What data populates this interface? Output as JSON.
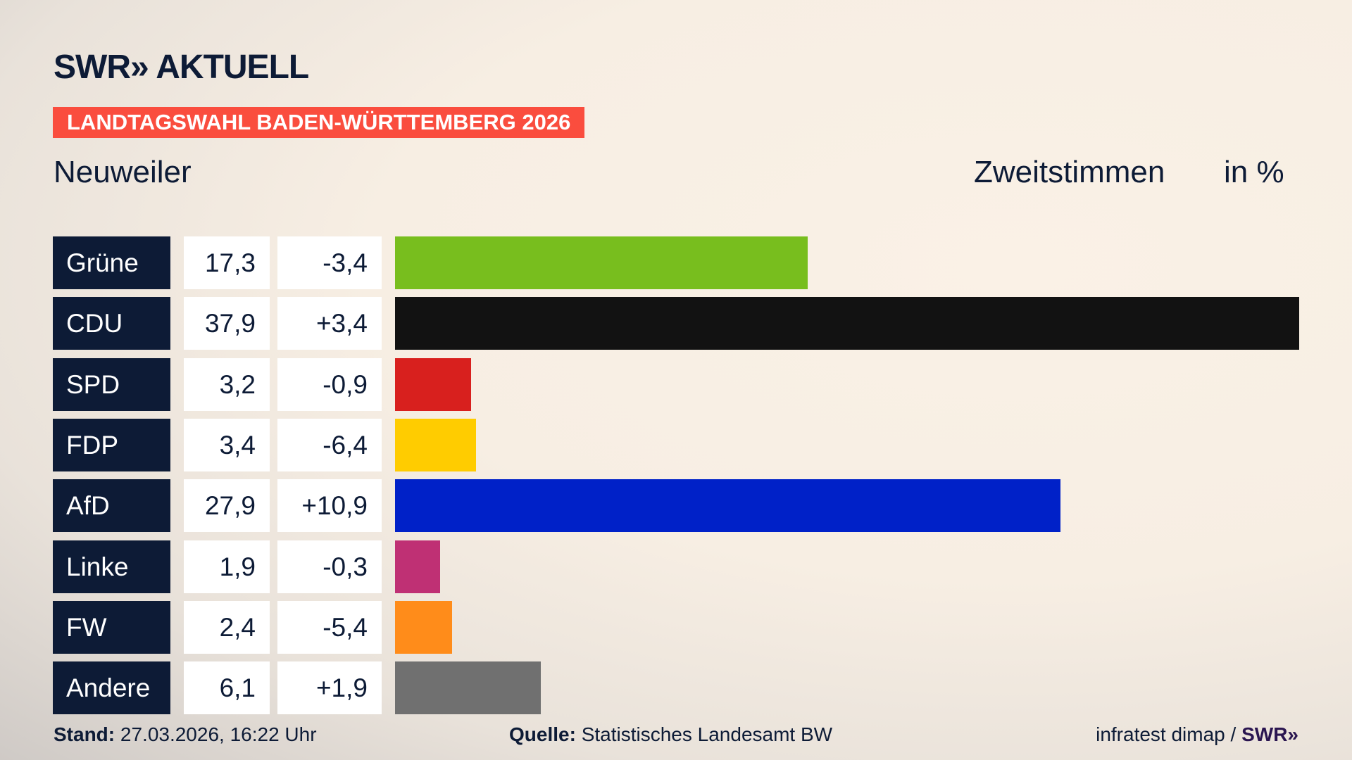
{
  "header": {
    "logo": "SWR» AKTUELL",
    "banner": "LANDTAGSWAHL BADEN-WÜRTTEMBERG 2026",
    "place": "Neuweiler",
    "vote_type": "Zweitstimmen",
    "unit": "in %"
  },
  "chart_data": {
    "type": "bar",
    "orientation": "horizontal",
    "categories": [
      "Grüne",
      "CDU",
      "SPD",
      "FDP",
      "AfD",
      "Linke",
      "FW",
      "Andere"
    ],
    "values_label": [
      "17,3",
      "37,9",
      "3,2",
      "3,4",
      "27,9",
      "1,9",
      "2,4",
      "6,1"
    ],
    "values": [
      17.3,
      37.9,
      3.2,
      3.4,
      27.9,
      1.9,
      2.4,
      6.1
    ],
    "diff_label": [
      "-3,4",
      "+3,4",
      "-0,9",
      "-6,4",
      "+10,9",
      "-0,3",
      "-5,4",
      "+1,9"
    ],
    "colors": [
      "#78be1e",
      "#121212",
      "#d8201e",
      "#ffcc00",
      "#0021c8",
      "#bf3074",
      "#ff8c1a",
      "#707070"
    ]
  },
  "footer": {
    "stand_label": "Stand:",
    "stand_value": "27.03.2026, 16:22 Uhr",
    "source_label": "Quelle:",
    "source_value": "Statistisches Landesamt BW",
    "credit": "infratest dimap / ",
    "credit_logo": "SWR»"
  }
}
